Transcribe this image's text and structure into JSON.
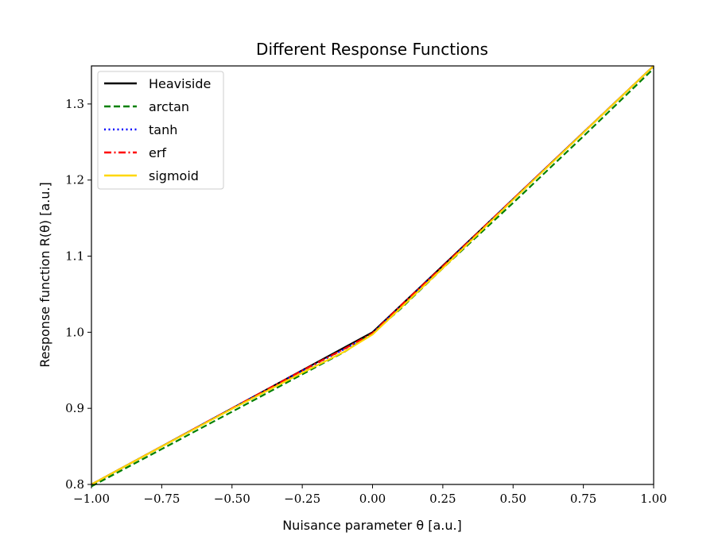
{
  "chart_data": {
    "type": "line",
    "title": "Different Response Functions",
    "xlabel": "Nuisance parameter θ [a.u.]",
    "ylabel": "Response function R(θ) [a.u.]",
    "xlim": [
      -1.0,
      1.0
    ],
    "ylim": [
      0.8,
      1.35
    ],
    "x_ticks": [
      -1.0,
      -0.75,
      -0.5,
      -0.25,
      0.0,
      0.25,
      0.5,
      0.75,
      1.0
    ],
    "x_tick_labels": [
      "−1.00",
      "−0.75",
      "−0.50",
      "−0.25",
      "0.00",
      "0.25",
      "0.50",
      "0.75",
      "1.00"
    ],
    "y_ticks": [
      0.8,
      0.9,
      1.0,
      1.1,
      1.2,
      1.3
    ],
    "y_tick_labels": [
      "0.8",
      "0.9",
      "1.0",
      "1.1",
      "1.2",
      "1.3"
    ],
    "grid": false,
    "legend_position": "top-left",
    "series": [
      {
        "name": "Heaviside",
        "color": "#000000",
        "style": "solid",
        "x": [
          -1.0,
          -0.75,
          -0.5,
          -0.25,
          0.0,
          0.25,
          0.5,
          0.75,
          1.0
        ],
        "y": [
          0.8,
          0.85,
          0.9,
          0.95,
          1.0,
          1.0875,
          1.175,
          1.2625,
          1.35
        ]
      },
      {
        "name": "arctan",
        "color": "#008000",
        "style": "dashed",
        "x": [
          -1.0,
          -0.75,
          -0.5,
          -0.25,
          -0.1,
          0.0,
          0.1,
          0.25,
          0.5,
          0.75,
          1.0
        ],
        "y": [
          0.7975,
          0.8465,
          0.8955,
          0.9447,
          0.9742,
          0.9985,
          1.0309,
          1.0842,
          1.17,
          1.2575,
          1.3465
        ]
      },
      {
        "name": "tanh",
        "color": "#0000ff",
        "style": "dotted",
        "x": [
          -1.0,
          -0.75,
          -0.5,
          -0.25,
          -0.1,
          0.0,
          0.1,
          0.25,
          0.5,
          0.75,
          1.0
        ],
        "y": [
          0.8,
          0.85,
          0.9,
          0.9494,
          0.9778,
          0.9985,
          1.0345,
          1.0862,
          1.1749,
          1.2625,
          1.35
        ]
      },
      {
        "name": "erf",
        "color": "#ff0000",
        "style": "dashdot",
        "x": [
          -1.0,
          -0.75,
          -0.5,
          -0.25,
          -0.1,
          0.0,
          0.1,
          0.25,
          0.5,
          0.75,
          1.0
        ],
        "y": [
          0.8,
          0.85,
          0.9,
          0.9497,
          0.9782,
          0.9987,
          1.0349,
          1.0866,
          1.175,
          1.2625,
          1.35
        ]
      },
      {
        "name": "sigmoid",
        "color": "#ffd700",
        "style": "solid",
        "x": [
          -1.0,
          -0.75,
          -0.5,
          -0.25,
          -0.1,
          0.0,
          0.1,
          0.25,
          0.5,
          0.75,
          1.0
        ],
        "y": [
          0.8,
          0.8498,
          0.8993,
          0.9468,
          0.9745,
          0.997,
          1.032,
          1.0843,
          1.174,
          1.2622,
          1.35
        ]
      }
    ]
  }
}
